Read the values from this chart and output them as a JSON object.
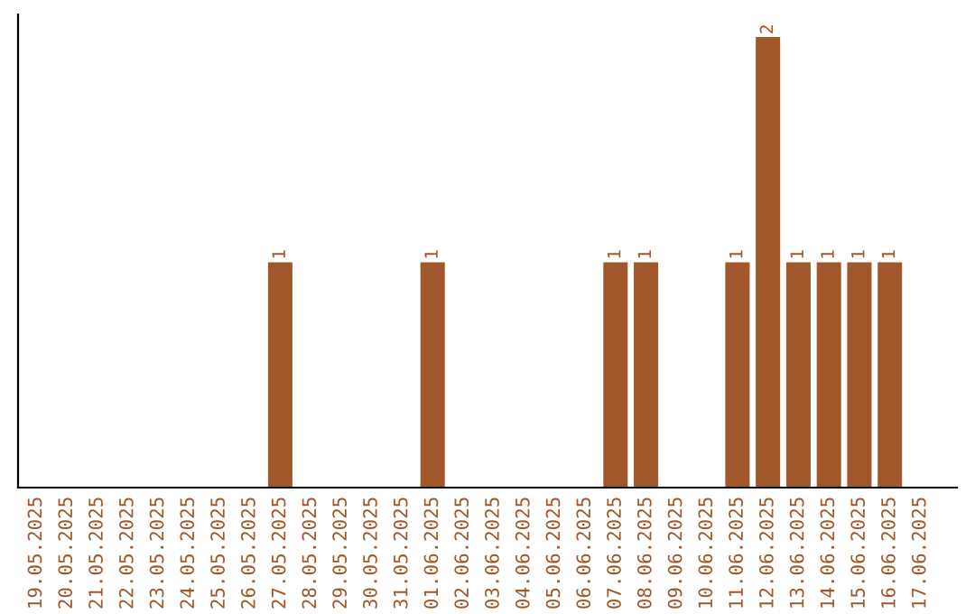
{
  "chart_data": {
    "type": "bar",
    "categories": [
      "19.05.2025",
      "20.05.2025",
      "21.05.2025",
      "22.05.2025",
      "23.05.2025",
      "24.05.2025",
      "25.05.2025",
      "26.05.2025",
      "27.05.2025",
      "28.05.2025",
      "29.05.2025",
      "30.05.2025",
      "31.05.2025",
      "01.06.2025",
      "02.06.2025",
      "03.06.2025",
      "04.06.2025",
      "05.06.2025",
      "06.06.2025",
      "07.06.2025",
      "08.06.2025",
      "09.06.2025",
      "10.06.2025",
      "11.06.2025",
      "12.06.2025",
      "13.06.2025",
      "14.06.2025",
      "15.06.2025",
      "16.06.2025",
      "17.06.2025"
    ],
    "values": [
      0,
      0,
      0,
      0,
      0,
      0,
      0,
      0,
      1,
      0,
      0,
      0,
      0,
      1,
      0,
      0,
      0,
      0,
      0,
      1,
      1,
      0,
      0,
      1,
      2,
      1,
      1,
      1,
      1,
      0
    ],
    "value_labels": [
      null,
      null,
      null,
      null,
      null,
      null,
      null,
      null,
      "1",
      null,
      null,
      null,
      null,
      "1",
      null,
      null,
      null,
      null,
      null,
      "1",
      "1",
      null,
      null,
      "1",
      "2",
      "1",
      "1",
      "1",
      "1",
      null
    ],
    "color": "#a0582a",
    "tick_labels": "x",
    "grid": false,
    "legend": false
  }
}
